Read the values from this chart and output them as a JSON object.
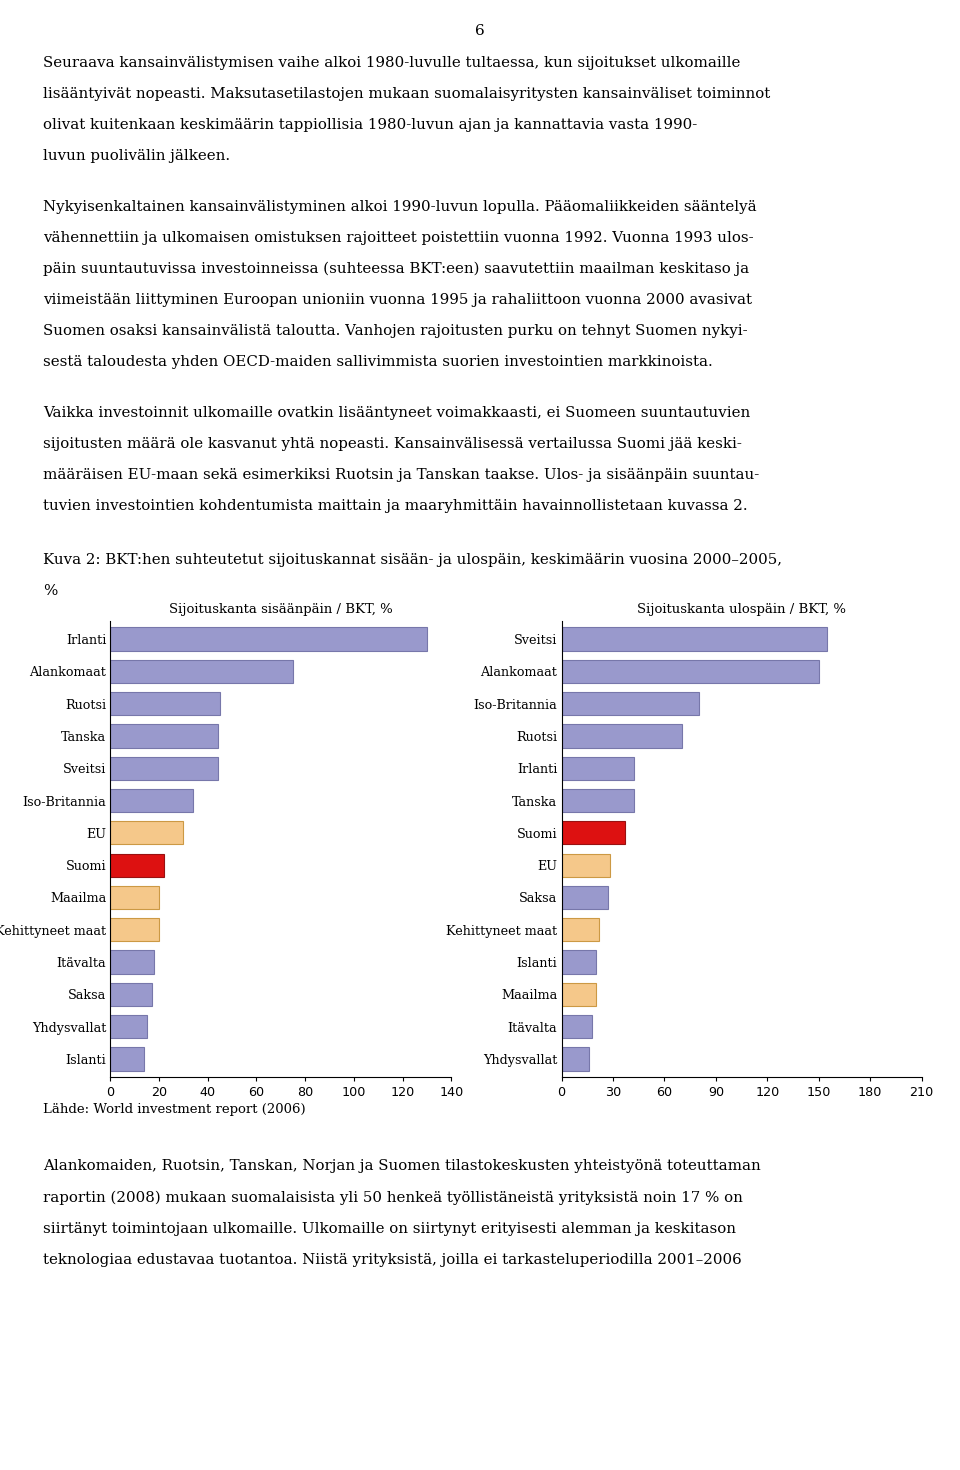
{
  "left_title": "Sijoituskanta sisäänpäin / BKT, %",
  "right_title": "Sijoituskanta ulospäin / BKT, %",
  "left_categories": [
    "Irlanti",
    "Alankomaat",
    "Ruotsi",
    "Tanska",
    "Sveitsi",
    "Iso-Britannia",
    "EU",
    "Suomi",
    "Maailma",
    "Kehittyneet maat",
    "Itävalta",
    "Saksa",
    "Yhdysvallat",
    "Islanti"
  ],
  "left_values": [
    130,
    75,
    45,
    44,
    44,
    34,
    30,
    22,
    20,
    20,
    18,
    17,
    15,
    14
  ],
  "left_colors": [
    "#9999cc",
    "#9999cc",
    "#9999cc",
    "#9999cc",
    "#9999cc",
    "#9999cc",
    "#f5c88a",
    "#dd1111",
    "#f5c88a",
    "#f5c88a",
    "#9999cc",
    "#9999cc",
    "#9999cc",
    "#9999cc"
  ],
  "left_xlim": [
    0,
    140
  ],
  "left_xticks": [
    0,
    20,
    40,
    60,
    80,
    100,
    120,
    140
  ],
  "right_categories": [
    "Sveitsi",
    "Alankomaat",
    "Iso-Britannia",
    "Ruotsi",
    "Irlanti",
    "Tanska",
    "Suomi",
    "EU",
    "Saksa",
    "Kehittyneet maat",
    "Islanti",
    "Maailma",
    "Itävalta",
    "Yhdysvallat"
  ],
  "right_values": [
    155,
    150,
    80,
    70,
    42,
    42,
    37,
    28,
    27,
    22,
    20,
    20,
    18,
    16
  ],
  "right_colors": [
    "#9999cc",
    "#9999cc",
    "#9999cc",
    "#9999cc",
    "#9999cc",
    "#9999cc",
    "#dd1111",
    "#f5c88a",
    "#9999cc",
    "#f5c88a",
    "#9999cc",
    "#f5c88a",
    "#9999cc",
    "#9999cc"
  ],
  "right_xlim": [
    0,
    210
  ],
  "right_xticks": [
    0,
    30,
    60,
    90,
    120,
    150,
    180,
    210
  ],
  "page_number": "6",
  "source_text": "Lähde: World investment report (2006)",
  "para1_lines": [
    "Seuraava kansainvälistymisen vaihe alkoi 1980-luvulle tultaessa, kun sijoitukset ulkomaille",
    "lisääntyivät nopeasti. Maksutasetilastojen mukaan suomalaisyritysten kansainväliset toiminnot",
    "olivat kuitenkaan keskimäärin tappiollisia 1980-luvun ajan ja kannattavia vasta 1990-",
    "luvun puolivälin jälkeen."
  ],
  "para2_lines": [
    "Nykyisenkaltainen kansainvälistyminen alkoi 1990-luvun lopulla. Pääomaliikkeiden sääntelyä",
    "vähennettiin ja ulkomaisen omistuksen rajoitteet poistettiin vuonna 1992. Vuonna 1993 ulos-",
    "päin suuntautuvissa investoinneissa (suhteessa BKT:een) saavutettiin maailman keskitaso ja",
    "viimeistään liittyminen Euroopan unioniin vuonna 1995 ja rahaliittoon vuonna 2000 avasivat",
    "Suomen osaksi kansainvälistä taloutta. Vanhojen rajoitusten purku on tehnyt Suomen nykyi-",
    "sestä taloudesta yhden OECD-maiden sallivimmista suorien investointien markkinoista."
  ],
  "para3_lines": [
    "Vaikka investoinnit ulkomaille ovatkin lisääntyneet voimakkaasti, ei Suomeen suuntautuvien",
    "sijoitusten määrä ole kasvanut yhtä nopeasti. Kansainvälisessä vertailussa Suomi jää keski-",
    "määräisen EU-maan sekä esimerkiksi Ruotsin ja Tanskan taakse. Ulos- ja sisäänpäin suuntau-",
    "tuvien investointien kohdentumista maittain ja maaryhmittäin havainnollistetaan kuvassa 2."
  ],
  "kuva_line1": "Kuva 2: BKT:hen suhteutetut sijoituskannat sisään- ja ulospäin, keskimäärin vuosina 2000–2005,",
  "kuva_line2": "%",
  "para4_lines": [
    "Alankomaiden, Ruotsin, Tanskan, Norjan ja Suomen tilastokeskusten yhteistyönä toteuttaman",
    "raportin (2008) mukaan suomalaisista yli 50 henkeä työllistäneistä yrityksistä noin 17 % on",
    "siirtänyt toimintojaan ulkomaille. Ulkomaille on siirtynyt erityisesti alemman ja keskitason",
    "teknologiaa edustavaa tuotantoa. Niistä yrityksistä, joilla ei tarkasteluperiodilla 2001–2006"
  ]
}
